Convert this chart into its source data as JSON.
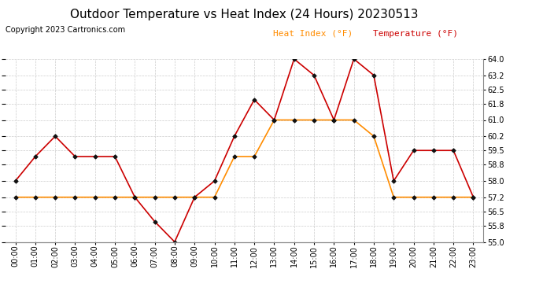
{
  "title": "Outdoor Temperature vs Heat Index (24 Hours) 20230513",
  "copyright": "Copyright 2023 Cartronics.com",
  "legend_heat": "Heat Index (°F)",
  "legend_temp": "Temperature (°F)",
  "hours": [
    "00:00",
    "01:00",
    "02:00",
    "03:00",
    "04:00",
    "05:00",
    "06:00",
    "07:00",
    "08:00",
    "09:00",
    "10:00",
    "11:00",
    "12:00",
    "13:00",
    "14:00",
    "15:00",
    "16:00",
    "17:00",
    "18:00",
    "19:00",
    "20:00",
    "21:00",
    "22:00",
    "23:00"
  ],
  "temperature": [
    58.0,
    59.2,
    60.2,
    59.2,
    59.2,
    59.2,
    57.2,
    56.0,
    55.0,
    57.2,
    58.0,
    60.2,
    62.0,
    61.0,
    64.0,
    63.2,
    61.0,
    64.0,
    63.2,
    58.0,
    59.5,
    59.5,
    59.5,
    57.2
  ],
  "heat_index": [
    57.2,
    57.2,
    57.2,
    57.2,
    57.2,
    57.2,
    57.2,
    57.2,
    57.2,
    57.2,
    57.2,
    59.2,
    59.2,
    61.0,
    61.0,
    61.0,
    61.0,
    61.0,
    60.2,
    57.2,
    57.2,
    57.2,
    57.2,
    57.2
  ],
  "temp_color": "#cc0000",
  "heat_color": "#ff8c00",
  "marker_color": "#111111",
  "ylim_min": 55.0,
  "ylim_max": 64.0,
  "yticks": [
    55.0,
    55.8,
    56.5,
    57.2,
    58.0,
    58.8,
    59.5,
    60.2,
    61.0,
    61.8,
    62.5,
    63.2,
    64.0
  ],
  "bg_color": "#ffffff",
  "grid_color": "#cccccc",
  "title_fontsize": 11,
  "copyright_fontsize": 7,
  "legend_fontsize": 8,
  "tick_fontsize": 7
}
